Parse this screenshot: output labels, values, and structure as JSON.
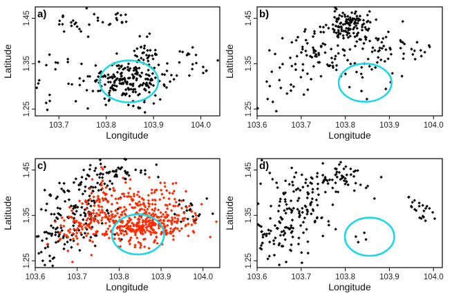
{
  "figure": {
    "axes": {
      "xlabel": "Longitude",
      "ylabel": "Latitude",
      "xticks": [
        "103.6",
        "103.7",
        "103.8",
        "103.9",
        "104.0"
      ],
      "yticks": [
        "1.25",
        "1.35",
        "1.45"
      ]
    }
  },
  "colors": {
    "black": "#000000",
    "red": "#ff2a00",
    "ellipse": "#19d9e6"
  },
  "chart_data": [
    {
      "type": "scatter",
      "label": "a)",
      "xlabel": "Longitude",
      "ylabel": "Latitude",
      "xlim": [
        103.65,
        104.04
      ],
      "ylim": [
        1.235,
        1.475
      ],
      "xticks": [
        103.7,
        103.8,
        103.9,
        104.0
      ],
      "yticks": [
        1.25,
        1.35,
        1.45
      ],
      "ellipse": {
        "center": [
          103.848,
          1.311
        ],
        "radii": [
          0.062,
          0.046
        ]
      },
      "series": [
        {
          "name": "points",
          "color": "#000000",
          "clusters": [
            {
              "cx": 103.845,
              "cy": 1.312,
              "sx": 0.042,
              "sy": 0.022,
              "n": 200
            },
            {
              "cx": 103.885,
              "cy": 1.37,
              "sx": 0.018,
              "sy": 0.018,
              "n": 30
            },
            {
              "cx": 103.72,
              "cy": 1.44,
              "sx": 0.02,
              "sy": 0.012,
              "n": 14
            },
            {
              "cx": 103.8,
              "cy": 1.44,
              "sx": 0.03,
              "sy": 0.015,
              "n": 18
            },
            {
              "cx": 103.7,
              "cy": 1.33,
              "sx": 0.03,
              "sy": 0.018,
              "n": 18
            },
            {
              "cx": 103.98,
              "cy": 1.35,
              "sx": 0.03,
              "sy": 0.025,
              "n": 20
            },
            {
              "cx": 103.68,
              "cy": 1.26,
              "sx": 0.008,
              "sy": 0.012,
              "n": 4
            }
          ]
        }
      ]
    },
    {
      "type": "scatter",
      "label": "b)",
      "xlabel": "Longitude",
      "ylabel": "Latitude",
      "xlim": [
        103.6,
        104.02
      ],
      "ylim": [
        1.235,
        1.475
      ],
      "xticks": [
        103.6,
        103.7,
        103.8,
        103.9,
        104.0
      ],
      "yticks": [
        1.25,
        1.35,
        1.45
      ],
      "ellipse": {
        "center": [
          103.845,
          1.308
        ],
        "radii": [
          0.06,
          0.042
        ]
      },
      "series": [
        {
          "name": "points",
          "color": "#000000",
          "clusters": [
            {
              "cx": 103.81,
              "cy": 1.435,
              "sx": 0.025,
              "sy": 0.018,
              "n": 120
            },
            {
              "cx": 103.75,
              "cy": 1.37,
              "sx": 0.04,
              "sy": 0.03,
              "n": 80
            },
            {
              "cx": 103.88,
              "cy": 1.385,
              "sx": 0.03,
              "sy": 0.03,
              "n": 50
            },
            {
              "cx": 103.65,
              "cy": 1.3,
              "sx": 0.03,
              "sy": 0.035,
              "n": 18
            },
            {
              "cx": 103.97,
              "cy": 1.38,
              "sx": 0.02,
              "sy": 0.012,
              "n": 10
            },
            {
              "cx": 103.83,
              "cy": 1.3,
              "sx": 0.03,
              "sy": 0.015,
              "n": 8
            }
          ]
        }
      ]
    },
    {
      "type": "scatter",
      "label": "c)",
      "xlabel": "Longitude",
      "ylabel": "Latitude",
      "xlim": [
        103.6,
        104.04
      ],
      "ylim": [
        1.235,
        1.475
      ],
      "xticks": [
        103.6,
        103.7,
        103.8,
        103.9,
        104.0
      ],
      "yticks": [
        1.25,
        1.35,
        1.45
      ],
      "ellipse": {
        "center": [
          103.845,
          1.308
        ],
        "radii": [
          0.062,
          0.044
        ]
      },
      "series": [
        {
          "name": "black",
          "color": "#000000",
          "clusters": [
            {
              "cx": 103.7,
              "cy": 1.36,
              "sx": 0.04,
              "sy": 0.045,
              "n": 130
            },
            {
              "cx": 103.79,
              "cy": 1.44,
              "sx": 0.035,
              "sy": 0.018,
              "n": 50
            },
            {
              "cx": 103.64,
              "cy": 1.3,
              "sx": 0.025,
              "sy": 0.03,
              "n": 40
            },
            {
              "cx": 103.97,
              "cy": 1.36,
              "sx": 0.025,
              "sy": 0.02,
              "n": 20
            }
          ]
        },
        {
          "name": "red",
          "color": "#ff2a00",
          "clusters": [
            {
              "cx": 103.85,
              "cy": 1.325,
              "sx": 0.05,
              "sy": 0.02,
              "n": 260
            },
            {
              "cx": 103.86,
              "cy": 1.38,
              "sx": 0.05,
              "sy": 0.025,
              "n": 120
            },
            {
              "cx": 103.76,
              "cy": 1.36,
              "sx": 0.03,
              "sy": 0.035,
              "n": 90
            },
            {
              "cx": 103.7,
              "cy": 1.32,
              "sx": 0.03,
              "sy": 0.025,
              "n": 60
            },
            {
              "cx": 103.95,
              "cy": 1.34,
              "sx": 0.03,
              "sy": 0.02,
              "n": 40
            }
          ]
        }
      ]
    },
    {
      "type": "scatter",
      "label": "d)",
      "xlabel": "Longitude",
      "ylabel": "Latitude",
      "xlim": [
        103.6,
        104.02
      ],
      "ylim": [
        1.235,
        1.475
      ],
      "xticks": [
        103.6,
        103.7,
        103.8,
        103.9,
        104.0
      ],
      "yticks": [
        1.25,
        1.35,
        1.45
      ],
      "ellipse": {
        "center": [
          103.855,
          1.303
        ],
        "radii": [
          0.056,
          0.042
        ]
      },
      "series": [
        {
          "name": "points",
          "color": "#000000",
          "clusters": [
            {
              "cx": 103.69,
              "cy": 1.36,
              "sx": 0.04,
              "sy": 0.045,
              "n": 120
            },
            {
              "cx": 103.78,
              "cy": 1.435,
              "sx": 0.035,
              "sy": 0.02,
              "n": 60
            },
            {
              "cx": 103.64,
              "cy": 1.3,
              "sx": 0.025,
              "sy": 0.03,
              "n": 45
            },
            {
              "cx": 103.97,
              "cy": 1.365,
              "sx": 0.02,
              "sy": 0.015,
              "n": 22
            },
            {
              "cx": 103.84,
              "cy": 1.305,
              "sx": 0.015,
              "sy": 0.01,
              "n": 4
            }
          ]
        }
      ]
    }
  ]
}
